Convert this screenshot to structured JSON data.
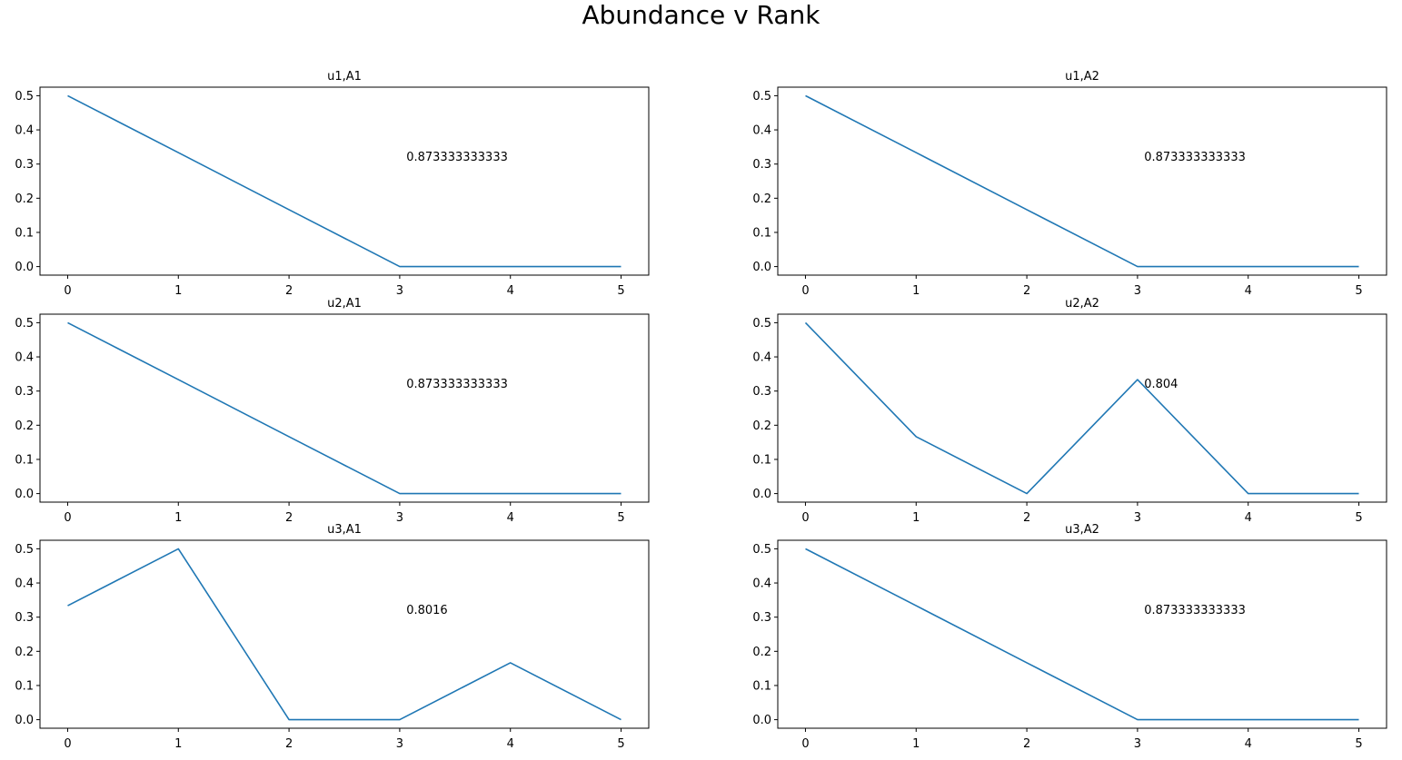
{
  "figure": {
    "title": "Abundance v Rank",
    "line_color": "#1f77b4"
  },
  "chart_data": [
    {
      "type": "line",
      "title": "u1,A1",
      "x": [
        0,
        1,
        2,
        3,
        4,
        5
      ],
      "y": [
        0.5,
        0.3333,
        0.1667,
        0.0,
        0.0,
        0.0
      ],
      "xlim": [
        -0.25,
        5.25
      ],
      "ylim": [
        -0.025,
        0.525
      ],
      "xticks": [
        "0",
        "1",
        "2",
        "3",
        "4",
        "5"
      ],
      "yticks": [
        "0.0",
        "0.1",
        "0.2",
        "0.3",
        "0.4",
        "0.5"
      ],
      "annotation": {
        "text": "0.873333333333",
        "x": 3.06,
        "y": 0.31
      }
    },
    {
      "type": "line",
      "title": "u1,A2",
      "x": [
        0,
        1,
        2,
        3,
        4,
        5
      ],
      "y": [
        0.5,
        0.3333,
        0.1667,
        0.0,
        0.0,
        0.0
      ],
      "xlim": [
        -0.25,
        5.25
      ],
      "ylim": [
        -0.025,
        0.525
      ],
      "xticks": [
        "0",
        "1",
        "2",
        "3",
        "4",
        "5"
      ],
      "yticks": [
        "0.0",
        "0.1",
        "0.2",
        "0.3",
        "0.4",
        "0.5"
      ],
      "annotation": {
        "text": "0.873333333333",
        "x": 3.06,
        "y": 0.31
      }
    },
    {
      "type": "line",
      "title": "u2,A1",
      "x": [
        0,
        1,
        2,
        3,
        4,
        5
      ],
      "y": [
        0.5,
        0.3333,
        0.1667,
        0.0,
        0.0,
        0.0
      ],
      "xlim": [
        -0.25,
        5.25
      ],
      "ylim": [
        -0.025,
        0.525
      ],
      "xticks": [
        "0",
        "1",
        "2",
        "3",
        "4",
        "5"
      ],
      "yticks": [
        "0.0",
        "0.1",
        "0.2",
        "0.3",
        "0.4",
        "0.5"
      ],
      "annotation": {
        "text": "0.873333333333",
        "x": 3.06,
        "y": 0.31
      }
    },
    {
      "type": "line",
      "title": "u2,A2",
      "x": [
        0,
        1,
        2,
        3,
        4,
        5
      ],
      "y": [
        0.5,
        0.1667,
        0.0,
        0.3333,
        0.0,
        0.0
      ],
      "xlim": [
        -0.25,
        5.25
      ],
      "ylim": [
        -0.025,
        0.525
      ],
      "xticks": [
        "0",
        "1",
        "2",
        "3",
        "4",
        "5"
      ],
      "yticks": [
        "0.0",
        "0.1",
        "0.2",
        "0.3",
        "0.4",
        "0.5"
      ],
      "annotation": {
        "text": "0.804",
        "x": 3.06,
        "y": 0.31
      }
    },
    {
      "type": "line",
      "title": "u3,A1",
      "x": [
        0,
        1,
        2,
        3,
        4,
        5
      ],
      "y": [
        0.3333,
        0.5,
        0.0,
        0.0,
        0.1667,
        0.0
      ],
      "xlim": [
        -0.25,
        5.25
      ],
      "ylim": [
        -0.025,
        0.525
      ],
      "xticks": [
        "0",
        "1",
        "2",
        "3",
        "4",
        "5"
      ],
      "yticks": [
        "0.0",
        "0.1",
        "0.2",
        "0.3",
        "0.4",
        "0.5"
      ],
      "annotation": {
        "text": "0.8016",
        "x": 3.06,
        "y": 0.31
      }
    },
    {
      "type": "line",
      "title": "u3,A2",
      "x": [
        0,
        1,
        2,
        3,
        4,
        5
      ],
      "y": [
        0.5,
        0.3333,
        0.1667,
        0.0,
        0.0,
        0.0
      ],
      "xlim": [
        -0.25,
        5.25
      ],
      "ylim": [
        -0.025,
        0.525
      ],
      "xticks": [
        "0",
        "1",
        "2",
        "3",
        "4",
        "5"
      ],
      "yticks": [
        "0.0",
        "0.1",
        "0.2",
        "0.3",
        "0.4",
        "0.5"
      ],
      "annotation": {
        "text": "0.873333333333",
        "x": 3.06,
        "y": 0.31
      }
    }
  ]
}
